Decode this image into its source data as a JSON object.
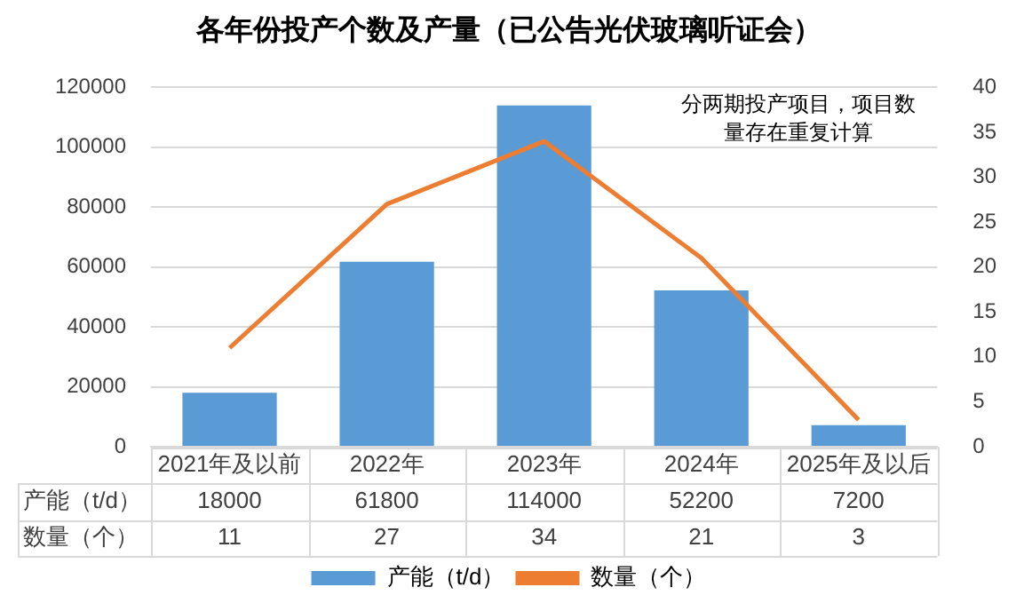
{
  "chart_data": {
    "type": "bar",
    "title": "各年份投产个数及产量（已公告光伏玻璃听证会）",
    "categories": [
      "2021年及以前",
      "2022年",
      "2023年",
      "2024年",
      "2025年及以后"
    ],
    "series": [
      {
        "name": "产能（t/d）",
        "color": "#5b9bd5",
        "values": [
          18000,
          61800,
          114000,
          52200,
          7200
        ]
      },
      {
        "name": "数量（个）",
        "type": "line",
        "axis": "y2",
        "color": "#ed7d31",
        "values": [
          11,
          27,
          34,
          21,
          3
        ]
      }
    ],
    "ylim": [
      0,
      120000
    ],
    "yticks": [
      0,
      20000,
      40000,
      60000,
      80000,
      100000,
      120000
    ],
    "y2lim": [
      0,
      40
    ],
    "y2ticks": [
      0,
      5,
      10,
      15,
      20,
      25,
      30,
      35,
      40
    ],
    "annotations": [
      "分两期投产项目，项目数量存在重复计算"
    ],
    "data_labels": true,
    "grid": "y",
    "legend": "bottom",
    "marker": "none",
    "line_style": "solid"
  }
}
